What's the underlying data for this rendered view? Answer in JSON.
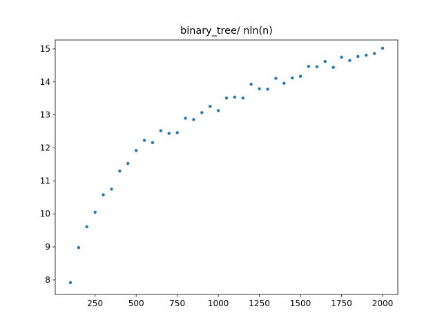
{
  "chart_data": {
    "type": "scatter",
    "title": "binary_tree/ nln(n)",
    "xlabel": "",
    "ylabel": "",
    "xlim": [
      7.5,
      2092.5
    ],
    "ylim": [
      7.56,
      15.27
    ],
    "x_ticks": [
      250,
      500,
      750,
      1000,
      1250,
      1500,
      1750,
      2000
    ],
    "y_ticks": [
      8,
      9,
      10,
      11,
      12,
      13,
      14,
      15
    ],
    "grid": false,
    "marker_color": "#1f77b4",
    "series": [
      {
        "x": [
          100,
          150,
          200,
          250,
          300,
          350,
          400,
          450,
          500,
          550,
          600,
          650,
          700,
          750,
          800,
          850,
          900,
          950,
          1000,
          1050,
          1100,
          1150,
          1200,
          1250,
          1300,
          1350,
          1400,
          1450,
          1500,
          1550,
          1600,
          1650,
          1700,
          1750,
          1800,
          1850,
          1900,
          1950,
          2000
        ],
        "y": [
          7.92,
          8.98,
          9.61,
          10.05,
          10.58,
          10.75,
          11.3,
          11.53,
          11.92,
          12.23,
          12.16,
          12.52,
          12.44,
          12.46,
          12.9,
          12.86,
          13.07,
          13.26,
          13.13,
          13.51,
          13.54,
          13.51,
          13.93,
          13.79,
          13.78,
          14.11,
          13.96,
          14.12,
          14.17,
          14.47,
          14.46,
          14.62,
          14.44,
          14.75,
          14.65,
          14.77,
          14.81,
          14.86,
          15.02
        ]
      }
    ]
  }
}
